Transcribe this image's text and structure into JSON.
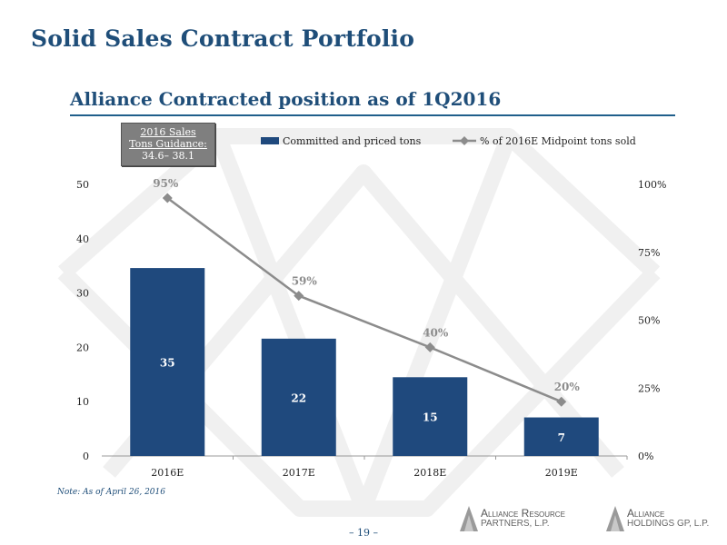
{
  "page": {
    "title": "Solid Sales Contract Portfolio",
    "subtitle": "Alliance Contracted position as of 1Q2016",
    "note": "Note:  As of April 26, 2016",
    "page_number": "– 19 –"
  },
  "guidance": {
    "line1": "2016 Sales",
    "line2": "Tons Guidance:",
    "line3": "34.6– 38.1"
  },
  "logos": [
    {
      "line1": "Alliance Resource",
      "line2": "PARTNERS, L.P."
    },
    {
      "line1": "Alliance",
      "line2": "HOLDINGS GP, L.P."
    }
  ],
  "colors": {
    "bar": "#1f497d",
    "line": "#8c8c8c",
    "title": "#1f4e79"
  },
  "chart_data": {
    "type": "bar",
    "categories": [
      "2016E",
      "2017E",
      "2018E",
      "2019E"
    ],
    "series": [
      {
        "name": "Committed and priced tons",
        "type": "bar",
        "axis": "left",
        "values": [
          34.6,
          21.6,
          14.5,
          7.1
        ],
        "labels": [
          "35",
          "22",
          "15",
          "7"
        ]
      },
      {
        "name": "% of 2016E Midpoint tons sold",
        "type": "line",
        "axis": "right",
        "values": [
          95,
          59,
          40,
          20
        ],
        "labels": [
          "95%",
          "59%",
          "40%",
          "20%"
        ]
      }
    ],
    "y_left": {
      "min": 0,
      "max": 50,
      "ticks": [
        "0",
        "10",
        "20",
        "30",
        "40",
        "50"
      ]
    },
    "y_right": {
      "min": 0,
      "max": 100,
      "ticks": [
        "0%",
        "25%",
        "50%",
        "75%",
        "100%"
      ]
    },
    "legend_position": "top",
    "grid": false
  }
}
